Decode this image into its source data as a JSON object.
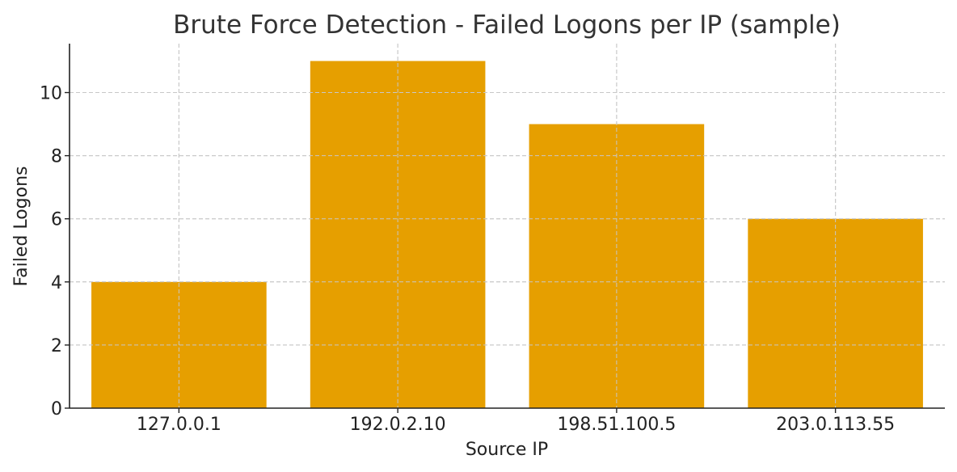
{
  "chart_data": {
    "type": "bar",
    "title": "Brute Force Detection - Failed Logons per IP (sample)",
    "xlabel": "Source IP",
    "ylabel": "Failed Logons",
    "categories": [
      "127.0.0.1",
      "192.0.2.10",
      "198.51.100.5",
      "203.0.113.55"
    ],
    "values": [
      4,
      11,
      9,
      6
    ],
    "ylim": [
      0,
      11.55
    ],
    "yticks": [
      0,
      2,
      4,
      6,
      8,
      10
    ],
    "grid": true,
    "bar_color": "#E69F00"
  }
}
